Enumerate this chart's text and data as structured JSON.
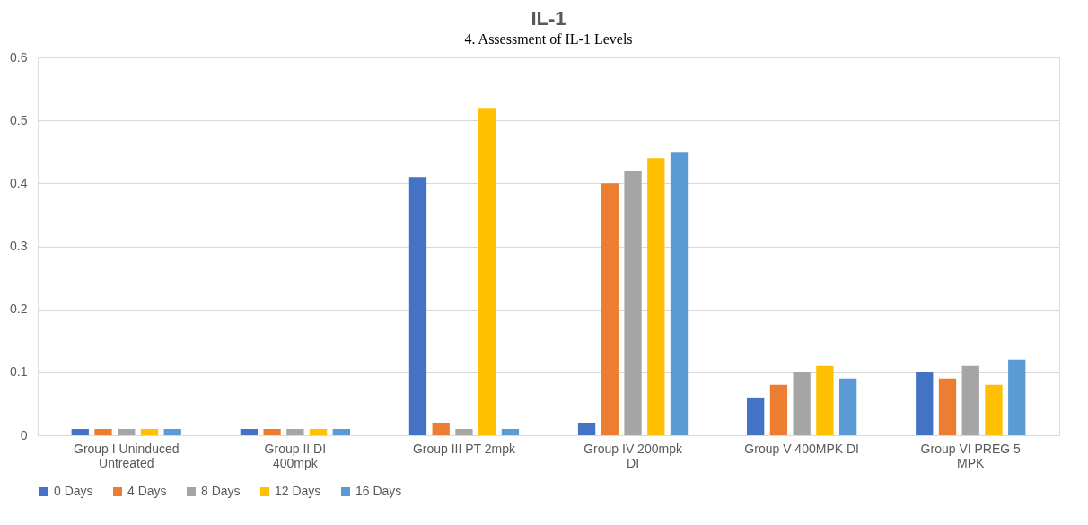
{
  "chart_data": {
    "type": "bar",
    "title": "IL-1",
    "annotations": [
      "4. Assessment of IL-1 Levels"
    ],
    "categories": [
      "Group I Uninduced Untreated",
      "Group II DI 400mpk",
      "Group III PT 2mpk",
      "Group IV 200mpk DI",
      "Group V 400MPK DI",
      "Group VI PREG 5 MPK"
    ],
    "series": [
      {
        "name": "0 Days",
        "color": "#4472c4",
        "values": [
          0.01,
          0.01,
          0.41,
          0.02,
          0.06,
          0.1
        ]
      },
      {
        "name": "4 Days",
        "color": "#ed7d31",
        "values": [
          0.01,
          0.01,
          0.02,
          0.4,
          0.08,
          0.09
        ]
      },
      {
        "name": "8 Days",
        "color": "#a5a5a5",
        "values": [
          0.01,
          0.01,
          0.01,
          0.42,
          0.1,
          0.11
        ]
      },
      {
        "name": "12 Days",
        "color": "#ffc000",
        "values": [
          0.01,
          0.01,
          0.52,
          0.44,
          0.11,
          0.08
        ]
      },
      {
        "name": "16 Days",
        "color": "#5b9bd5",
        "values": [
          0.01,
          0.01,
          0.01,
          0.45,
          0.09,
          0.12
        ]
      }
    ],
    "ylim": [
      0,
      0.6
    ],
    "yticks": [
      0,
      0.1,
      0.2,
      0.3,
      0.4,
      0.5,
      0.6
    ],
    "grid": "y",
    "legend": "bottom"
  }
}
